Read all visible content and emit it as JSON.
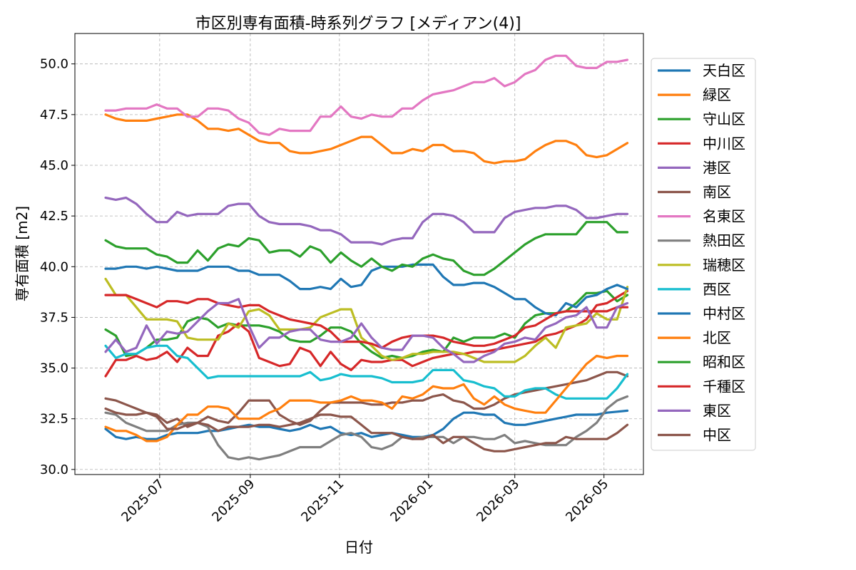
{
  "chart_data": {
    "type": "line",
    "title": "市区別専有面積-時系列グラフ [メディアン(4)]",
    "xlabel": "日付",
    "ylabel": "専有面積 [m2]",
    "ylim": [
      29.75,
      51.5
    ],
    "xlim": [
      "2025-05-04",
      "2026-05-28"
    ],
    "yticks": [
      30.0,
      32.5,
      35.0,
      37.5,
      40.0,
      42.5,
      45.0,
      47.5,
      50.0
    ],
    "yticklabels": [
      "30.0",
      "32.5",
      "35.0",
      "37.5",
      "40.0",
      "42.5",
      "45.0",
      "47.5",
      "50.0"
    ],
    "xticks": [
      "2025-07-01",
      "2025-09-01",
      "2025-11-01",
      "2026-01-01",
      "2026-03-01",
      "2026-05-01"
    ],
    "xticklabels": [
      "2025-07",
      "2025-09",
      "2025-11",
      "2026-01",
      "2026-03",
      "2026-05"
    ],
    "grid": true,
    "legend_position": "right-outside",
    "x": [
      "2025-05-25",
      "2025-06-01",
      "2025-06-08",
      "2025-06-15",
      "2025-06-22",
      "2025-06-29",
      "2025-07-06",
      "2025-07-13",
      "2025-07-20",
      "2025-07-27",
      "2025-08-03",
      "2025-08-10",
      "2025-08-17",
      "2025-08-24",
      "2025-08-31",
      "2025-09-07",
      "2025-09-14",
      "2025-09-21",
      "2025-09-28",
      "2025-10-05",
      "2025-10-12",
      "2025-10-19",
      "2025-10-26",
      "2025-11-02",
      "2025-11-09",
      "2025-11-16",
      "2025-11-23",
      "2025-11-30",
      "2025-12-07",
      "2025-12-14",
      "2025-12-21",
      "2025-12-28",
      "2026-01-04",
      "2026-01-11",
      "2026-01-18",
      "2026-01-25",
      "2026-02-01",
      "2026-02-08",
      "2026-02-15",
      "2026-02-22",
      "2026-03-01",
      "2026-03-08",
      "2026-03-15",
      "2026-03-22",
      "2026-03-29",
      "2026-04-05",
      "2026-04-12",
      "2026-04-19",
      "2026-04-26",
      "2026-05-03",
      "2026-05-10",
      "2026-05-17"
    ],
    "series": [
      {
        "name": "天白区",
        "color": "#1f77b4",
        "values": [
          32.0,
          31.6,
          31.5,
          31.6,
          31.5,
          31.5,
          31.7,
          31.8,
          31.8,
          31.8,
          31.9,
          31.9,
          32.0,
          32.1,
          32.2,
          32.1,
          32.1,
          32.0,
          31.9,
          32.0,
          32.2,
          32.0,
          32.1,
          31.8,
          31.7,
          31.8,
          31.6,
          31.7,
          31.8,
          31.7,
          31.6,
          31.6,
          31.7,
          32.0,
          32.5,
          32.8,
          32.8,
          32.7,
          32.7,
          32.3,
          32.2,
          32.2,
          32.3,
          32.4,
          32.5,
          32.6,
          32.7,
          32.7,
          32.7,
          32.8,
          32.85,
          32.9
        ]
      },
      {
        "name": "緑区",
        "color": "#ff7f0e",
        "values": [
          47.5,
          47.3,
          47.2,
          47.2,
          47.2,
          47.3,
          47.4,
          47.5,
          47.5,
          47.2,
          46.8,
          46.8,
          46.7,
          46.8,
          46.5,
          46.2,
          46.1,
          46.1,
          45.7,
          45.6,
          45.6,
          45.7,
          45.8,
          46.0,
          46.2,
          46.4,
          46.4,
          46.0,
          45.6,
          45.6,
          45.8,
          45.7,
          46.0,
          46.0,
          45.7,
          45.7,
          45.6,
          45.2,
          45.1,
          45.2,
          45.2,
          45.3,
          45.7,
          46.0,
          46.2,
          46.2,
          46.0,
          45.5,
          45.4,
          45.5,
          45.8,
          46.1
        ]
      },
      {
        "name": "守山区",
        "color": "#2ca02c",
        "values": [
          36.9,
          36.6,
          35.6,
          35.7,
          36.0,
          36.4,
          36.4,
          36.5,
          37.3,
          37.5,
          37.4,
          37.0,
          37.2,
          37.1,
          37.1,
          37.1,
          37.0,
          36.8,
          36.4,
          36.3,
          36.3,
          36.6,
          37.0,
          37.0,
          36.8,
          36.2,
          35.8,
          35.5,
          35.6,
          35.5,
          35.6,
          35.8,
          35.9,
          35.8,
          36.5,
          36.3,
          36.5,
          36.5,
          36.5,
          36.7,
          36.5,
          37.2,
          37.6,
          37.7,
          37.7,
          37.8,
          38.2,
          38.7,
          38.7,
          38.8,
          38.3,
          38.6
        ]
      },
      {
        "name": "中川区",
        "color": "#d62728",
        "values": [
          34.6,
          35.4,
          35.4,
          35.6,
          35.4,
          35.5,
          35.8,
          35.3,
          36.0,
          35.6,
          35.6,
          36.6,
          36.8,
          37.2,
          36.8,
          35.5,
          35.3,
          35.1,
          35.2,
          36.0,
          35.8,
          35.1,
          35.8,
          35.2,
          34.9,
          35.4,
          35.3,
          35.3,
          35.4,
          35.4,
          35.1,
          35.3,
          35.5,
          35.6,
          35.7,
          35.7,
          35.8,
          35.8,
          35.9,
          36.0,
          36.1,
          36.2,
          36.3,
          36.6,
          36.7,
          36.9,
          37.1,
          37.4,
          38.1,
          38.2,
          38.5,
          38.8
        ]
      },
      {
        "name": "港区",
        "color": "#9467bd",
        "values": [
          43.4,
          43.3,
          43.4,
          43.1,
          42.6,
          42.2,
          42.2,
          42.7,
          42.5,
          42.6,
          42.6,
          42.6,
          43.0,
          43.1,
          43.1,
          42.5,
          42.2,
          42.1,
          42.1,
          42.1,
          42.0,
          41.8,
          41.8,
          41.6,
          41.2,
          41.2,
          41.2,
          41.1,
          41.3,
          41.4,
          41.4,
          42.2,
          42.6,
          42.6,
          42.5,
          42.2,
          41.7,
          41.7,
          41.7,
          42.4,
          42.7,
          42.8,
          42.9,
          42.9,
          43.0,
          43.0,
          42.8,
          42.4,
          42.4,
          42.5,
          42.6,
          42.6
        ]
      },
      {
        "name": "南区",
        "color": "#8c564b",
        "values": [
          33.5,
          33.4,
          33.2,
          33.0,
          32.8,
          32.7,
          32.3,
          32.5,
          32.1,
          32.3,
          32.6,
          32.4,
          32.3,
          32.8,
          33.4,
          33.4,
          33.4,
          32.7,
          32.4,
          32.2,
          32.4,
          32.9,
          33.3,
          33.3,
          33.3,
          33.3,
          33.2,
          33.2,
          33.3,
          33.3,
          33.4,
          33.4,
          33.6,
          33.7,
          33.4,
          33.3,
          33.0,
          33.0,
          33.2,
          33.5,
          33.7,
          33.8,
          33.9,
          34.0,
          34.1,
          34.2,
          34.3,
          34.4,
          34.6,
          34.8,
          34.8,
          34.6
        ]
      },
      {
        "name": "名東区",
        "color": "#e377c2",
        "values": [
          47.7,
          47.7,
          47.8,
          47.8,
          47.8,
          48.0,
          47.8,
          47.8,
          47.4,
          47.4,
          47.8,
          47.8,
          47.7,
          47.3,
          47.1,
          46.6,
          46.5,
          46.8,
          46.7,
          46.7,
          46.7,
          47.4,
          47.4,
          47.9,
          47.4,
          47.3,
          47.5,
          47.4,
          47.4,
          47.8,
          47.8,
          48.2,
          48.5,
          48.6,
          48.7,
          48.9,
          49.1,
          49.1,
          49.3,
          48.9,
          49.1,
          49.5,
          49.7,
          50.2,
          50.4,
          50.4,
          49.9,
          49.8,
          49.8,
          50.1,
          50.1,
          50.2
        ]
      },
      {
        "name": "熱田区",
        "color": "#7f7f7f",
        "values": [
          32.8,
          32.7,
          32.3,
          32.1,
          31.9,
          31.9,
          31.9,
          32.2,
          32.3,
          32.3,
          32.1,
          31.2,
          30.6,
          30.5,
          30.6,
          30.5,
          30.6,
          30.7,
          30.9,
          31.1,
          31.1,
          31.1,
          31.4,
          31.7,
          31.8,
          31.6,
          31.1,
          31.0,
          31.2,
          31.6,
          31.5,
          31.6,
          31.6,
          31.6,
          31.3,
          31.6,
          31.6,
          31.5,
          31.5,
          31.7,
          31.3,
          31.4,
          31.3,
          31.2,
          31.2,
          31.2,
          31.6,
          31.9,
          32.3,
          33.0,
          33.4,
          33.6
        ]
      },
      {
        "name": "瑞穂区",
        "color": "#bcbd22",
        "values": [
          39.4,
          38.6,
          38.6,
          38.0,
          37.4,
          37.4,
          37.4,
          37.3,
          36.5,
          36.4,
          36.4,
          36.4,
          37.2,
          37.0,
          37.8,
          37.9,
          37.6,
          36.9,
          36.9,
          36.9,
          37.0,
          37.5,
          37.7,
          37.9,
          37.9,
          36.5,
          36.1,
          35.6,
          35.4,
          35.5,
          35.7,
          35.7,
          35.8,
          35.8,
          35.8,
          35.7,
          35.5,
          35.3,
          35.3,
          35.3,
          35.3,
          35.6,
          36.1,
          36.5,
          36.0,
          37.0,
          37.1,
          37.2,
          37.7,
          37.4,
          37.4,
          39.0
        ]
      },
      {
        "name": "西区",
        "color": "#17becf",
        "values": [
          36.1,
          35.5,
          35.7,
          35.7,
          36.0,
          36.1,
          36.1,
          35.6,
          35.5,
          35.0,
          34.5,
          34.6,
          34.6,
          34.6,
          34.6,
          34.6,
          34.6,
          34.6,
          34.6,
          34.6,
          34.8,
          34.4,
          34.5,
          34.7,
          34.6,
          34.6,
          34.6,
          34.5,
          34.3,
          34.3,
          34.3,
          34.4,
          34.9,
          34.9,
          34.9,
          34.4,
          34.3,
          34.1,
          34.0,
          33.6,
          33.6,
          33.9,
          34.0,
          34.0,
          33.7,
          33.5,
          33.5,
          33.5,
          33.5,
          33.5,
          34.0,
          34.7
        ]
      },
      {
        "name": "中村区",
        "color": "#1f77b4",
        "values": [
          39.9,
          39.9,
          40.0,
          40.0,
          39.9,
          40.0,
          39.9,
          39.8,
          39.8,
          39.8,
          40.0,
          40.0,
          40.0,
          39.8,
          39.8,
          39.6,
          39.6,
          39.6,
          39.3,
          38.9,
          38.9,
          39.0,
          38.9,
          39.4,
          39.0,
          39.1,
          39.8,
          40.0,
          40.0,
          40.0,
          40.1,
          40.1,
          40.1,
          39.5,
          39.1,
          39.1,
          39.2,
          39.2,
          39.0,
          38.7,
          38.4,
          38.4,
          38.0,
          37.7,
          37.6,
          38.2,
          38.0,
          38.5,
          38.6,
          38.9,
          39.1,
          38.9
        ]
      },
      {
        "name": "北区",
        "color": "#ff7f0e",
        "values": [
          32.1,
          31.9,
          31.9,
          31.7,
          31.4,
          31.4,
          31.6,
          32.2,
          32.7,
          32.7,
          33.1,
          33.1,
          33.0,
          32.5,
          32.5,
          32.5,
          32.8,
          33.0,
          33.4,
          33.4,
          33.4,
          33.3,
          33.3,
          33.4,
          33.6,
          33.4,
          33.4,
          33.3,
          33.0,
          33.6,
          33.5,
          33.7,
          34.1,
          34.0,
          34.0,
          34.2,
          33.5,
          33.2,
          33.6,
          33.2,
          33.0,
          32.9,
          32.8,
          32.8,
          33.4,
          34.0,
          34.6,
          35.2,
          35.6,
          35.5,
          35.6,
          35.6
        ]
      },
      {
        "name": "昭和区",
        "color": "#2ca02c",
        "values": [
          41.3,
          41.0,
          40.9,
          40.9,
          40.9,
          40.6,
          40.5,
          40.2,
          40.2,
          40.8,
          40.3,
          40.9,
          41.1,
          41.0,
          41.4,
          41.3,
          40.7,
          40.8,
          40.8,
          40.5,
          41.0,
          40.8,
          40.2,
          40.7,
          40.3,
          40.0,
          40.4,
          40.0,
          39.8,
          40.1,
          40.0,
          40.4,
          40.6,
          40.4,
          40.3,
          39.8,
          39.6,
          39.6,
          39.9,
          40.3,
          40.7,
          41.1,
          41.4,
          41.6,
          41.6,
          41.6,
          41.6,
          42.2,
          42.2,
          42.2,
          41.7,
          41.7
        ]
      },
      {
        "name": "千種区",
        "color": "#d62728",
        "values": [
          38.6,
          38.6,
          38.6,
          38.4,
          38.2,
          38.0,
          38.3,
          38.3,
          38.2,
          38.4,
          38.4,
          38.2,
          38.1,
          38.0,
          38.1,
          38.1,
          37.8,
          37.6,
          37.4,
          37.3,
          37.2,
          37.1,
          36.8,
          36.3,
          36.3,
          36.3,
          36.2,
          36.0,
          36.3,
          36.5,
          36.6,
          36.6,
          36.6,
          36.5,
          36.3,
          36.2,
          36.1,
          36.1,
          36.2,
          36.4,
          36.6,
          37.0,
          37.1,
          37.4,
          37.7,
          37.8,
          37.8,
          37.8,
          37.8,
          37.8,
          38.0,
          38.0
        ]
      },
      {
        "name": "東区",
        "color": "#9467bd",
        "values": [
          35.8,
          36.4,
          35.8,
          36.0,
          37.1,
          36.2,
          36.8,
          36.7,
          36.8,
          37.3,
          37.8,
          38.2,
          38.2,
          38.4,
          37.1,
          36.0,
          36.5,
          36.5,
          36.8,
          36.9,
          36.9,
          36.4,
          36.3,
          36.3,
          36.5,
          37.2,
          36.5,
          36.0,
          35.9,
          35.9,
          36.6,
          36.6,
          36.5,
          36.0,
          35.7,
          35.3,
          35.3,
          35.6,
          35.8,
          36.2,
          36.3,
          36.5,
          36.4,
          37.0,
          37.2,
          37.5,
          37.6,
          38.0,
          37.0,
          37.0,
          38.0,
          38.2
        ]
      },
      {
        "name": "中区",
        "color": "#8c564b",
        "values": [
          33.0,
          32.8,
          32.7,
          32.7,
          32.8,
          32.6,
          32.0,
          32.0,
          32.2,
          32.3,
          32.2,
          31.9,
          32.1,
          32.1,
          32.1,
          32.2,
          32.2,
          32.1,
          32.2,
          32.3,
          32.5,
          32.7,
          32.7,
          32.6,
          32.6,
          32.2,
          31.8,
          31.8,
          31.8,
          31.6,
          31.5,
          31.5,
          31.7,
          31.3,
          31.6,
          31.6,
          31.3,
          31.0,
          30.9,
          30.9,
          31.0,
          31.1,
          31.2,
          31.3,
          31.3,
          31.6,
          31.5,
          31.5,
          31.5,
          31.5,
          31.8,
          32.2
        ]
      }
    ]
  }
}
